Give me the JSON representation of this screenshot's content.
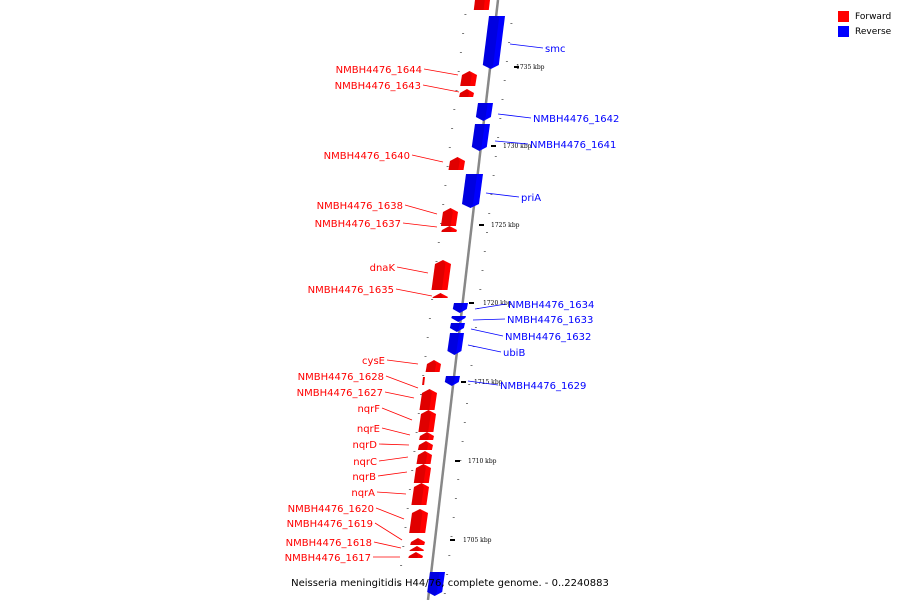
{
  "caption": "Neisseria meningitidis H44/76, complete genome. - 0..2240883",
  "legend": [
    {
      "label": "Forward",
      "color": "#ff0000"
    },
    {
      "label": "Reverse",
      "color": "#0000ff"
    }
  ],
  "colors": {
    "forward": "#ff0000",
    "reverse": "#0000ff",
    "backbone": "#888888",
    "tick": "#000000"
  },
  "scale_unit": "kbp",
  "scale_ticks": [
    {
      "kbp": 1735,
      "label": "1735 kbp"
    },
    {
      "kbp": 1730,
      "label": "1730 kbp"
    },
    {
      "kbp": 1725,
      "label": "1725 kbp"
    },
    {
      "kbp": 1720,
      "label": "1720 kbp"
    },
    {
      "kbp": 1715,
      "label": "1715 kbp"
    },
    {
      "kbp": 1710,
      "label": "1710 kbp"
    },
    {
      "kbp": 1705,
      "label": "1705 kbp"
    }
  ],
  "genes": [
    {
      "name": "",
      "strand": "forward"
    },
    {
      "name": "smc",
      "strand": "reverse"
    },
    {
      "name": "NMBH4476_1644",
      "strand": "forward"
    },
    {
      "name": "NMBH4476_1643",
      "strand": "forward"
    },
    {
      "name": "NMBH4476_1642",
      "strand": "reverse"
    },
    {
      "name": "NMBH4476_1641",
      "strand": "reverse"
    },
    {
      "name": "NMBH4476_1640",
      "strand": "forward"
    },
    {
      "name": "priA",
      "strand": "reverse"
    },
    {
      "name": "NMBH4476_1638",
      "strand": "forward"
    },
    {
      "name": "NMBH4476_1637",
      "strand": "forward"
    },
    {
      "name": "dnaK",
      "strand": "forward"
    },
    {
      "name": "NMBH4476_1635",
      "strand": "forward"
    },
    {
      "name": "NMBH4476_1634",
      "strand": "reverse"
    },
    {
      "name": "NMBH4476_1633",
      "strand": "reverse"
    },
    {
      "name": "NMBH4476_1632",
      "strand": "reverse"
    },
    {
      "name": "ubiB",
      "strand": "reverse"
    },
    {
      "name": "cysE",
      "strand": "forward"
    },
    {
      "name": "NMBH4476_1629",
      "strand": "reverse"
    },
    {
      "name": "NMBH4476_1628",
      "strand": "forward"
    },
    {
      "name": "NMBH4476_1627",
      "strand": "forward"
    },
    {
      "name": "nqrF",
      "strand": "forward"
    },
    {
      "name": "nqrE",
      "strand": "forward"
    },
    {
      "name": "nqrD",
      "strand": "forward"
    },
    {
      "name": "nqrC",
      "strand": "forward"
    },
    {
      "name": "nqrB",
      "strand": "forward"
    },
    {
      "name": "nqrA",
      "strand": "forward"
    },
    {
      "name": "NMBH4476_1620",
      "strand": "forward"
    },
    {
      "name": "NMBH4476_1619",
      "strand": "forward"
    },
    {
      "name": "NMBH4476_1618",
      "strand": "forward"
    },
    {
      "name": "NMBH4476_1617",
      "strand": "forward"
    },
    {
      "name": "",
      "strand": "reverse"
    }
  ]
}
